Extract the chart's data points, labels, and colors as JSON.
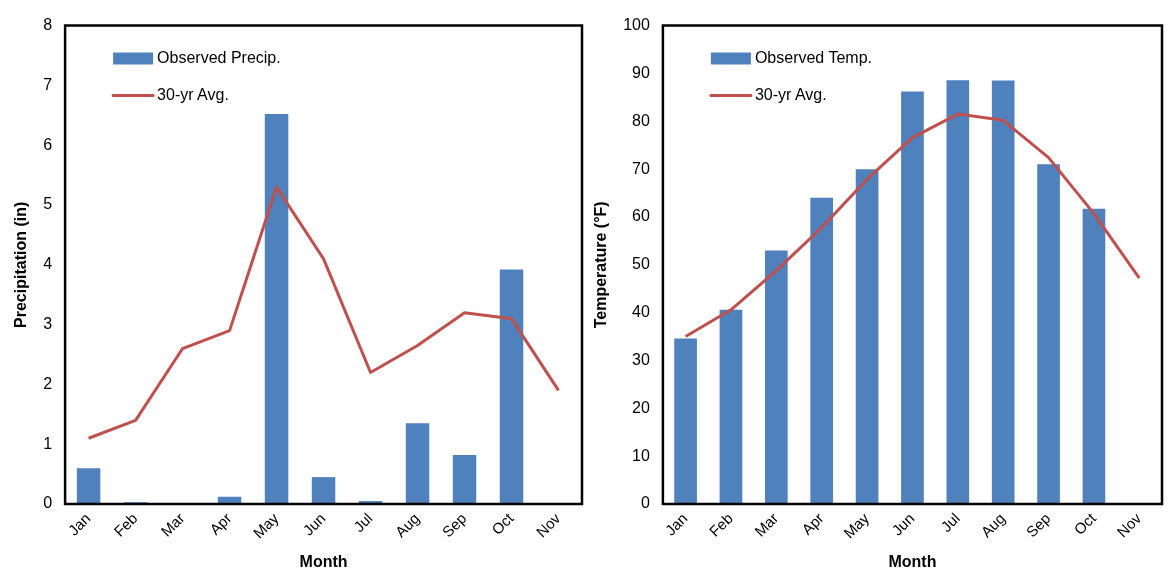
{
  "chart_data": [
    {
      "type": "bar",
      "xlabel": "Month",
      "ylabel": "Precipitation (in)",
      "categories": [
        "Jan",
        "Feb",
        "Mar",
        "Apr",
        "May",
        "Jun",
        "Jul",
        "Aug",
        "Sep",
        "Oct",
        "Nov"
      ],
      "ylim": [
        0,
        8
      ],
      "yticks": [
        0,
        1,
        2,
        3,
        4,
        5,
        6,
        7,
        8
      ],
      "grid": false,
      "legend": "top left",
      "series": [
        {
          "name": "Observed Precip.",
          "color": "#4f81bd",
          "values": [
            0.6,
            0.03,
            0,
            0.12,
            6.52,
            0.45,
            0.05,
            1.35,
            0.82,
            3.92,
            null
          ]
        },
        {
          "name": "30-yr Avg.",
          "type": "line",
          "color": "#c0504d",
          "values": [
            1.1,
            1.4,
            2.6,
            2.9,
            5.3,
            4.1,
            2.2,
            2.65,
            3.2,
            3.1,
            1.9
          ]
        }
      ]
    },
    {
      "type": "bar",
      "xlabel": "Month",
      "ylabel": "Temperature (°F)",
      "categories": [
        "Jan",
        "Feb",
        "Mar",
        "Apr",
        "May",
        "Jun",
        "Jul",
        "Aug",
        "Sep",
        "Oct",
        "Nov"
      ],
      "ylim": [
        0,
        100
      ],
      "yticks": [
        0,
        10,
        20,
        30,
        40,
        50,
        60,
        70,
        80,
        90,
        100
      ],
      "grid": false,
      "legend": "top left",
      "series": [
        {
          "name": "Observed Temp.",
          "color": "#4f81bd",
          "values": [
            34.6,
            40.6,
            53,
            64,
            70,
            86.2,
            88.6,
            88.5,
            71,
            61.7,
            null
          ]
        },
        {
          "name": "30-yr Avg.",
          "type": "line",
          "color": "#c0504d",
          "values": [
            35,
            40.6,
            48.8,
            57.8,
            67.9,
            76.6,
            81.5,
            80.2,
            72.4,
            60.7,
            47.2
          ]
        }
      ]
    }
  ]
}
